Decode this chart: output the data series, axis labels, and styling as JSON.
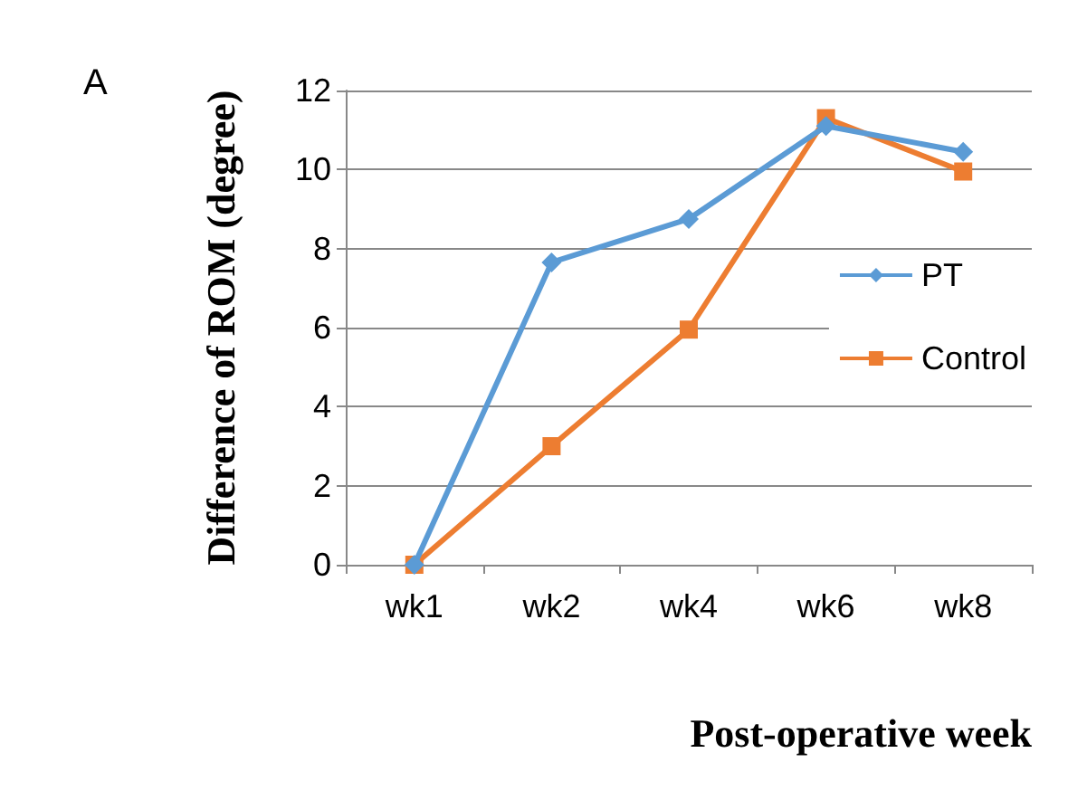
{
  "chart_data": {
    "type": "line",
    "xlabel": "Post-operative week",
    "ylabel": "Difference of ROM (degree)",
    "annotations": [
      "A"
    ],
    "categories": [
      "wk1",
      "wk2",
      "wk4",
      "wk6",
      "wk8"
    ],
    "series": [
      {
        "name": "PT",
        "color": "#5b9bd5",
        "marker": "diamond",
        "values": [
          0,
          7.65,
          8.75,
          11.1,
          10.45
        ]
      },
      {
        "name": "Control",
        "color": "#ed7d31",
        "marker": "square",
        "values": [
          0,
          3,
          5.95,
          11.3,
          9.95
        ]
      }
    ],
    "ylim": [
      0,
      12
    ],
    "yticks": [
      0,
      2,
      4,
      6,
      8,
      10,
      12
    ],
    "grid": "y",
    "legend": "right",
    "line_style": "solid"
  }
}
